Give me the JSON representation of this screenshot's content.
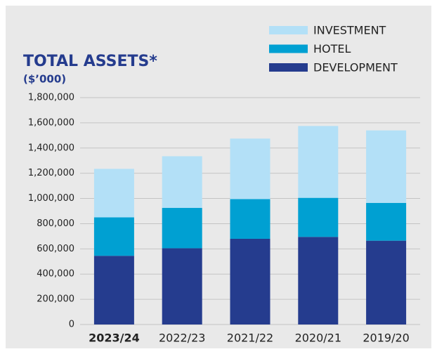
{
  "chart_data": {
    "type": "stacked_bar",
    "title": "TOTAL ASSETS*",
    "subtitle": "($’000)",
    "categories": [
      "2023/24",
      "2022/23",
      "2021/22",
      "2020/21",
      "2019/20"
    ],
    "series": [
      {
        "name": "DEVELOPMENT",
        "color": "#253c8e",
        "values": [
          545000,
          605000,
          680000,
          695000,
          665000
        ]
      },
      {
        "name": "HOTEL",
        "color": "#00a0d2",
        "values": [
          305000,
          320000,
          315000,
          310000,
          300000
        ]
      },
      {
        "name": "INVESTMENT",
        "color": "#b3e0f7",
        "values": [
          385000,
          410000,
          480000,
          570000,
          575000
        ]
      }
    ],
    "ylim": [
      0,
      1800000
    ],
    "yticks": [
      0,
      {
        "value": 200000,
        "label": "200,000"
      },
      {
        "value": 400000,
        "label": "400,000"
      },
      {
        "value": 600000,
        "label": "600,000"
      },
      {
        "value": 800000,
        "label": "800,000"
      },
      {
        "value": 1000000,
        "label": "1,000,000"
      },
      {
        "value": 1200000,
        "label": "1,200,000"
      },
      {
        "value": 1400000,
        "label": "1,400,000"
      },
      {
        "value": 1600000,
        "label": "1,600,000"
      },
      {
        "value": 1800000,
        "label": "1,800,000"
      }
    ],
    "grid": true,
    "legend": "top-right"
  }
}
